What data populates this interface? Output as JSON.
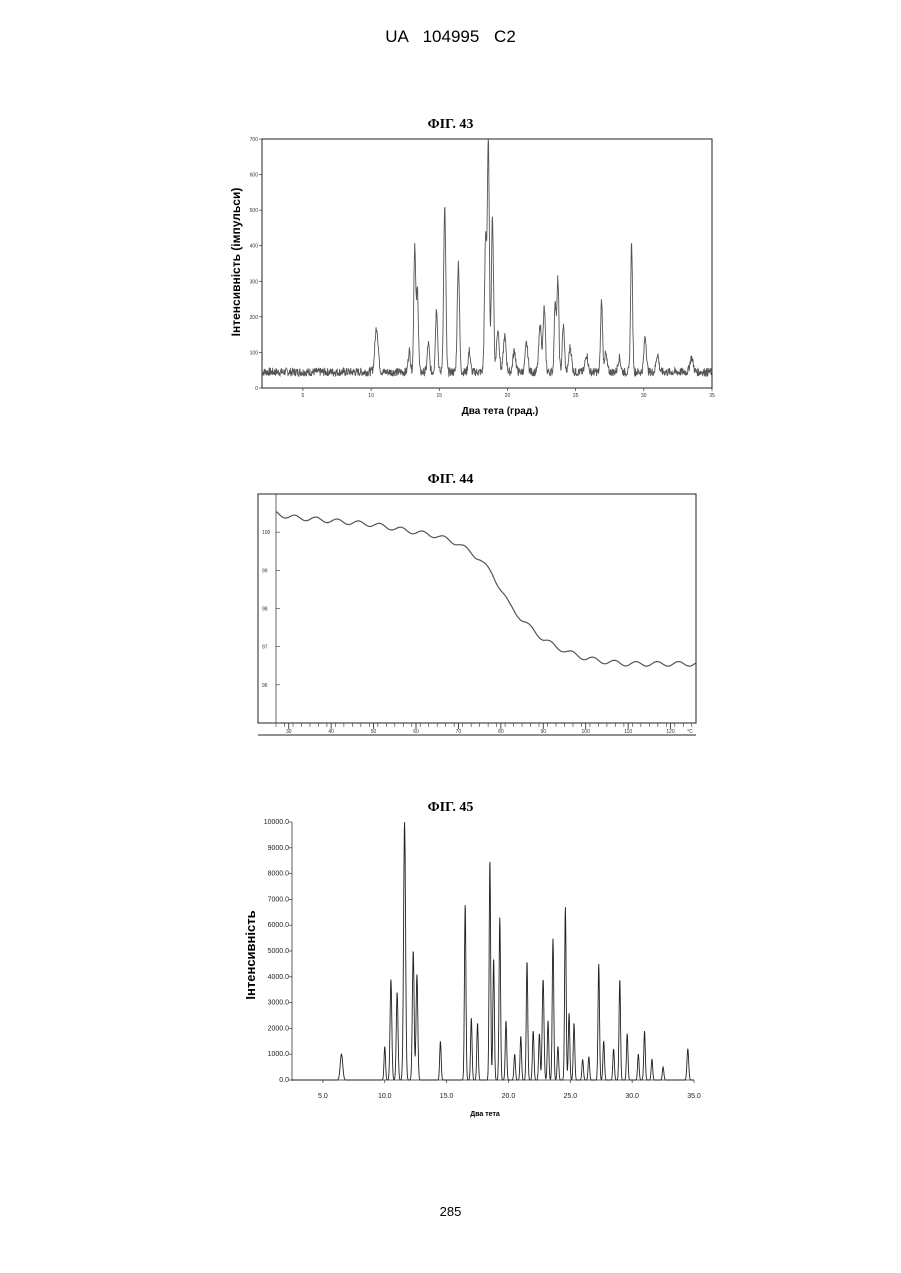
{
  "header": "UA 104995 C2",
  "page_number": "285",
  "chart_data": [
    {
      "title": "ФІГ. 43",
      "type": "line",
      "xlabel": "Два тета (град.)",
      "ylabel": "Інтенсивність (імпульси)",
      "xlim": [
        2,
        35
      ],
      "ylim": [
        0,
        700
      ],
      "xticks": [
        "5",
        "10",
        "15",
        "20",
        "25",
        "30",
        "35"
      ],
      "yticks": [
        "0",
        "100",
        "200",
        "300",
        "400",
        "500",
        "600",
        "700"
      ],
      "baseline": 45,
      "noise": 12,
      "peaks": [
        [
          10.4,
          125,
          0.12
        ],
        [
          12.8,
          60,
          0.08
        ],
        [
          13.2,
          360,
          0.07
        ],
        [
          13.4,
          230,
          0.07
        ],
        [
          14.2,
          80,
          0.08
        ],
        [
          14.8,
          180,
          0.08
        ],
        [
          15.4,
          460,
          0.08
        ],
        [
          16.4,
          310,
          0.08
        ],
        [
          17.2,
          60,
          0.08
        ],
        [
          18.4,
          380,
          0.08
        ],
        [
          18.6,
          640,
          0.07
        ],
        [
          18.9,
          430,
          0.08
        ],
        [
          19.3,
          120,
          0.1
        ],
        [
          19.8,
          100,
          0.1
        ],
        [
          20.5,
          60,
          0.1
        ],
        [
          21.4,
          80,
          0.1
        ],
        [
          22.4,
          130,
          0.1
        ],
        [
          22.7,
          180,
          0.08
        ],
        [
          23.5,
          200,
          0.07
        ],
        [
          23.7,
          260,
          0.07
        ],
        [
          24.1,
          130,
          0.08
        ],
        [
          24.6,
          70,
          0.1
        ],
        [
          25.8,
          50,
          0.1
        ],
        [
          26.9,
          200,
          0.07
        ],
        [
          27.2,
          50,
          0.1
        ],
        [
          28.2,
          40,
          0.1
        ],
        [
          29.1,
          360,
          0.07
        ],
        [
          30.1,
          100,
          0.09
        ],
        [
          31.0,
          50,
          0.1
        ],
        [
          33.5,
          40,
          0.12
        ]
      ]
    },
    {
      "title": "ФІГ. 44",
      "type": "line",
      "xlabel": "",
      "ylabel": "",
      "xlim": [
        27,
        126
      ],
      "ylim": [
        94.5,
        100.5
      ],
      "xticks": [
        "30",
        "40",
        "50",
        "60",
        "70",
        "80",
        "90",
        "100",
        "110",
        "120"
      ],
      "x_unit": "°C",
      "yticks": [
        "",
        "100",
        "99",
        "98",
        "97",
        "96",
        ""
      ],
      "points": [
        [
          27,
          100.0
        ],
        [
          30,
          99.9
        ],
        [
          35,
          99.85
        ],
        [
          40,
          99.8
        ],
        [
          45,
          99.75
        ],
        [
          50,
          99.7
        ],
        [
          55,
          99.6
        ],
        [
          60,
          99.5
        ],
        [
          65,
          99.4
        ],
        [
          70,
          99.2
        ],
        [
          75,
          98.8
        ],
        [
          78,
          98.4
        ],
        [
          80,
          98.0
        ],
        [
          82,
          97.6
        ],
        [
          85,
          97.2
        ],
        [
          88,
          96.9
        ],
        [
          90,
          96.7
        ],
        [
          93,
          96.5
        ],
        [
          96,
          96.35
        ],
        [
          100,
          96.2
        ],
        [
          105,
          96.1
        ],
        [
          110,
          96.05
        ],
        [
          115,
          96.05
        ],
        [
          120,
          96.05
        ],
        [
          125,
          96.05
        ]
      ]
    },
    {
      "title": "ФІГ. 45",
      "type": "line",
      "xlabel": "Два тета",
      "ylabel": "Інтенсивність",
      "xlim": [
        2.5,
        35
      ],
      "ylim": [
        0,
        10000
      ],
      "xticks": [
        "5.0",
        "10.0",
        "15.0",
        "20.0",
        "25.0",
        "30.0",
        "35.0"
      ],
      "yticks": [
        "0.0",
        "1000.0",
        "2000.0",
        "3000.0",
        "4000.0",
        "5000.0",
        "6000.0",
        "7000.0",
        "8000.0",
        "9000.0",
        "10000.0"
      ],
      "baseline": 0,
      "noise": 0,
      "peaks": [
        [
          6.5,
          1000,
          0.1
        ],
        [
          10.0,
          1300,
          0.06
        ],
        [
          10.5,
          3900,
          0.07
        ],
        [
          11.0,
          3400,
          0.07
        ],
        [
          11.6,
          10000,
          0.08
        ],
        [
          12.3,
          5000,
          0.07
        ],
        [
          12.6,
          4100,
          0.07
        ],
        [
          14.5,
          1500,
          0.06
        ],
        [
          16.5,
          6800,
          0.06
        ],
        [
          17.0,
          2400,
          0.06
        ],
        [
          17.5,
          2200,
          0.06
        ],
        [
          18.5,
          8500,
          0.06
        ],
        [
          18.8,
          4700,
          0.06
        ],
        [
          19.3,
          6300,
          0.06
        ],
        [
          19.8,
          2300,
          0.06
        ],
        [
          20.5,
          1000,
          0.06
        ],
        [
          21.0,
          1700,
          0.06
        ],
        [
          21.5,
          4600,
          0.06
        ],
        [
          22.0,
          1900,
          0.06
        ],
        [
          22.5,
          1800,
          0.06
        ],
        [
          22.8,
          3900,
          0.07
        ],
        [
          23.2,
          2300,
          0.06
        ],
        [
          23.6,
          5500,
          0.06
        ],
        [
          24.0,
          1300,
          0.06
        ],
        [
          24.6,
          6700,
          0.06
        ],
        [
          24.9,
          2600,
          0.06
        ],
        [
          25.3,
          2200,
          0.06
        ],
        [
          26.0,
          800,
          0.06
        ],
        [
          26.5,
          900,
          0.06
        ],
        [
          27.3,
          4500,
          0.06
        ],
        [
          27.7,
          1500,
          0.06
        ],
        [
          28.5,
          1200,
          0.06
        ],
        [
          29.0,
          3900,
          0.06
        ],
        [
          29.6,
          1800,
          0.06
        ],
        [
          30.5,
          1000,
          0.06
        ],
        [
          31.0,
          1900,
          0.06
        ],
        [
          31.6,
          800,
          0.06
        ],
        [
          32.5,
          500,
          0.06
        ],
        [
          34.5,
          1200,
          0.07
        ]
      ]
    }
  ]
}
